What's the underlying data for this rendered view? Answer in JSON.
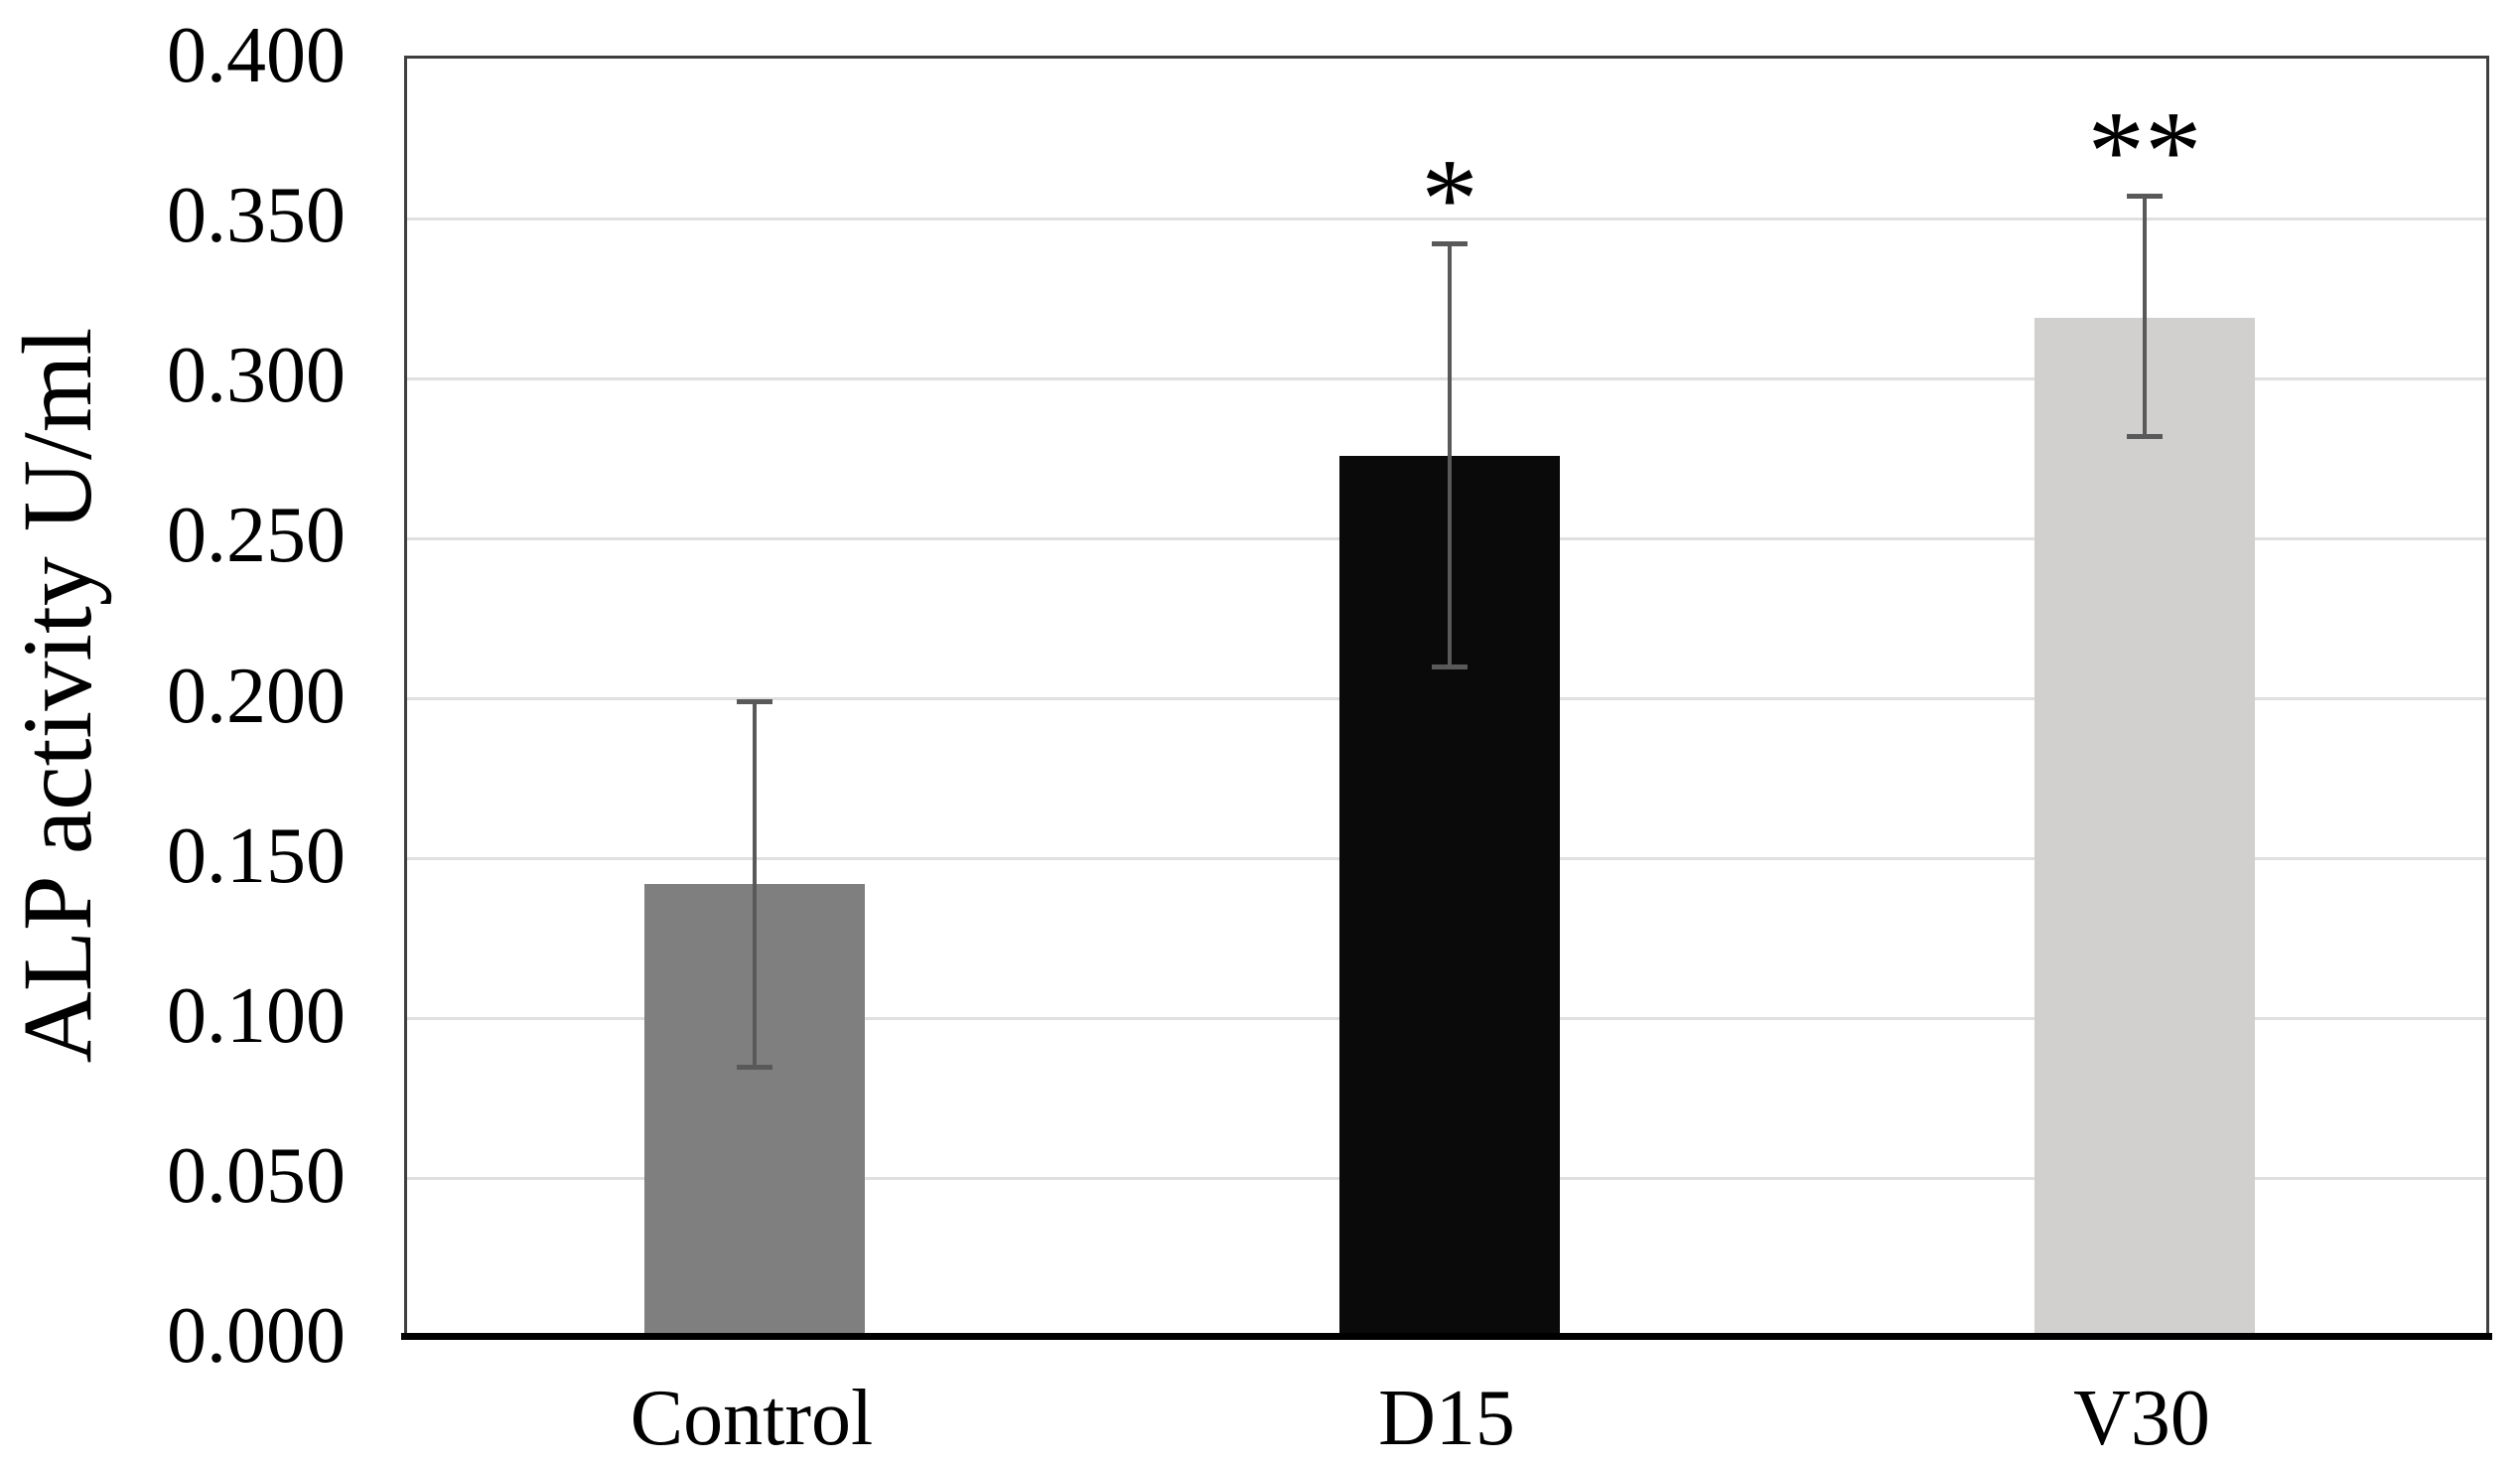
{
  "figure": {
    "background": "#ffffff"
  },
  "chart_data": {
    "type": "bar",
    "title": "",
    "xlabel": "",
    "ylabel": "ALP activity U/ml",
    "categories": [
      "Control",
      "D15",
      "V30"
    ],
    "values": [
      0.142,
      0.276,
      0.319
    ],
    "error_up": [
      0.057,
      0.066,
      0.038
    ],
    "error_down": [
      0.057,
      0.066,
      0.037
    ],
    "annotations": [
      "",
      "*",
      "**"
    ],
    "bar_colors": [
      "#7f7f7f",
      "#0a0a0a",
      "#d2cfcf"
    ],
    "ylim": [
      0.0,
      0.4
    ],
    "ytick_step": 0.05,
    "ytick_labels": [
      "0.000",
      "0.050",
      "0.100",
      "0.150",
      "0.200",
      "0.250",
      "0.300",
      "0.350",
      "0.400"
    ],
    "grid": true,
    "legend": false,
    "colors": {
      "gridline": "#e0e0e0",
      "error_bar": "#595959",
      "plot_border": "#3f3f3f",
      "axis_line": "#000000",
      "text": "#000000"
    }
  }
}
